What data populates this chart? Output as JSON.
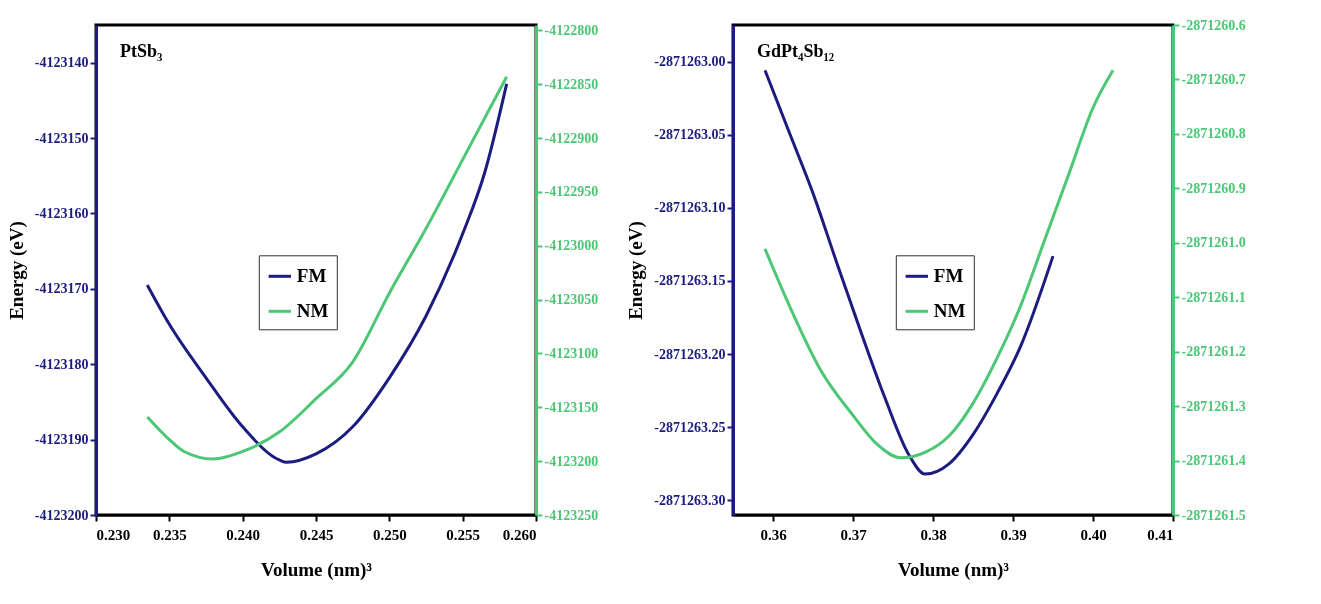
{
  "chart_data": [
    {
      "type": "line",
      "annotations": [
        "PtSb₃"
      ],
      "xlabel": "Volume (nm)³",
      "ylabel": "Energy (eV)",
      "legend": "center",
      "grid": false,
      "xlim": [
        0.23,
        0.26
      ],
      "xticks": [
        {
          "value": 0.23,
          "label": "0.230"
        },
        0.235,
        {
          "value": 0.24,
          "label": "0.240"
        },
        0.245,
        {
          "value": 0.25,
          "label": "0.250"
        },
        0.255,
        {
          "value": 0.26,
          "label": "0.260"
        }
      ],
      "ylim": [
        -4123200,
        -4123135
      ],
      "yticks": [
        -4123200,
        -4123190,
        -4123180,
        -4123170,
        -4123160,
        -4123150,
        -4123140
      ],
      "y2lim": [
        -4123250,
        -4122795
      ],
      "y2ticks": [
        -4123250,
        -4123200,
        -4123150,
        -4123100,
        -4123050,
        -4123000,
        -4122950,
        -4122900,
        -4122850,
        -4122800
      ],
      "series": [
        {
          "name": "FM",
          "color": "#1c1c80",
          "x": [
            0.2335,
            0.235,
            0.2375,
            0.24,
            0.2425,
            0.243,
            0.245,
            0.2475,
            0.25,
            0.2525,
            0.255,
            0.2565,
            0.258
          ],
          "values": [
            -4123169.5,
            -4123174.7,
            -4123181.8,
            -4123188.3,
            -4123192.7,
            -4123193,
            -4123191.9,
            -4123188.3,
            -4123181.8,
            -4123173.6,
            -4123162.7,
            -4123154.6,
            -4123142.8
          ]
        },
        {
          "name": "NM",
          "color": "#4cc776",
          "axis": "y2",
          "x": [
            0.2335,
            0.235,
            0.236,
            0.238,
            0.24,
            0.2425,
            0.245,
            0.2475,
            0.25,
            0.2525,
            0.255,
            0.258
          ],
          "values": [
            -4123159,
            -4123180,
            -4123191,
            -4123198,
            -4123191,
            -4123173,
            -4123142,
            -4123108,
            -4123044,
            -4122984,
            -4122920,
            -4122843
          ]
        }
      ]
    },
    {
      "type": "line",
      "annotations": [
        "GdPt₄Sb₁₂"
      ],
      "xlabel": "Volume (nm)³",
      "ylabel": "Energy (eV)",
      "legend": "center",
      "grid": false,
      "xlim": [
        0.355,
        0.41
      ],
      "xticks": [
        0.36,
        0.37,
        0.38,
        0.39,
        {
          "value": 0.4,
          "label": "0.40"
        },
        0.41
      ],
      "ylim": [
        -2871263.31,
        -2871262.975
      ],
      "yticks": [
        {
          "value": -2871263.3,
          "label": "-2871263.30"
        },
        -2871263.25,
        {
          "value": -2871263.2,
          "label": "-2871263.20"
        },
        -2871263.15,
        {
          "value": -2871263.1,
          "label": "-2871263.10"
        },
        -2871263.05,
        {
          "value": -2871263,
          "label": "-2871263.00"
        }
      ],
      "y2lim": [
        -2871261.5,
        -2871260.6
      ],
      "y2ticks": [
        -2871261.5,
        -2871261.4,
        -2871261.3,
        -2871261.2,
        -2871261.1,
        {
          "value": -2871261,
          "label": "-2871261.0"
        },
        -2871260.9,
        -2871260.8,
        -2871260.7,
        -2871260.6
      ],
      "series": [
        {
          "name": "FM",
          "color": "#1c1c80",
          "x": [
            0.359,
            0.362,
            0.365,
            0.368,
            0.371,
            0.374,
            0.377,
            0.379,
            0.382,
            0.385,
            0.388,
            0.391,
            0.395
          ],
          "values": [
            -2871263.006,
            -2871263.048,
            -2871263.09,
            -2871263.138,
            -2871263.185,
            -2871263.23,
            -2871263.269,
            -2871263.282,
            -2871263.275,
            -2871263.255,
            -2871263.227,
            -2871263.194,
            -2871263.133
          ]
        },
        {
          "name": "NM",
          "color": "#4cc776",
          "axis": "y2",
          "x": [
            0.359,
            0.362,
            0.366,
            0.37,
            0.373,
            0.376,
            0.379,
            0.382,
            0.385,
            0.388,
            0.391,
            0.394,
            0.397,
            0.4,
            0.4025
          ],
          "values": [
            -2871261.011,
            -2871261.114,
            -2871261.235,
            -2871261.317,
            -2871261.37,
            -2871261.395,
            -2871261.385,
            -2871261.355,
            -2871261.295,
            -2871261.212,
            -2871261.114,
            -2871260.993,
            -2871260.873,
            -2871260.752,
            -2871260.683
          ]
        }
      ]
    }
  ]
}
